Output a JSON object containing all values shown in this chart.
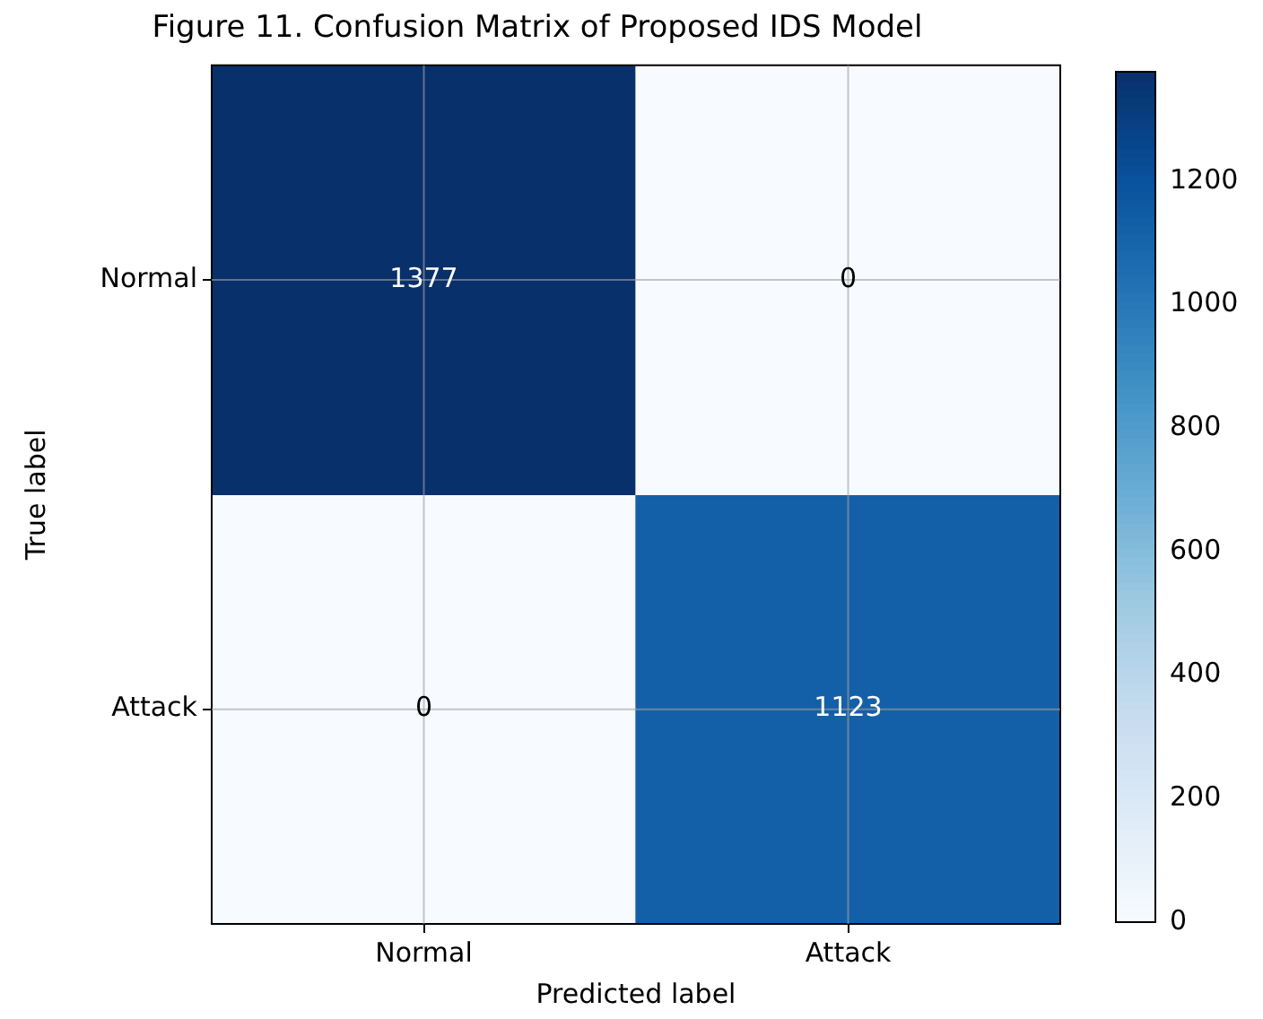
{
  "chart_data": {
    "type": "heatmap",
    "title": "Figure 11. Confusion Matrix of Proposed IDS Model",
    "xlabel": "Predicted label",
    "ylabel": "True label",
    "categories": [
      "Normal",
      "Attack"
    ],
    "y_categories": [
      "Normal",
      "Attack"
    ],
    "cells": [
      [
        1377,
        0
      ],
      [
        0,
        1123
      ]
    ],
    "clim": [
      0,
      1377
    ],
    "cticks": [
      0,
      200,
      400,
      600,
      800,
      1000,
      1200
    ],
    "data_labels": true,
    "grid": true
  }
}
